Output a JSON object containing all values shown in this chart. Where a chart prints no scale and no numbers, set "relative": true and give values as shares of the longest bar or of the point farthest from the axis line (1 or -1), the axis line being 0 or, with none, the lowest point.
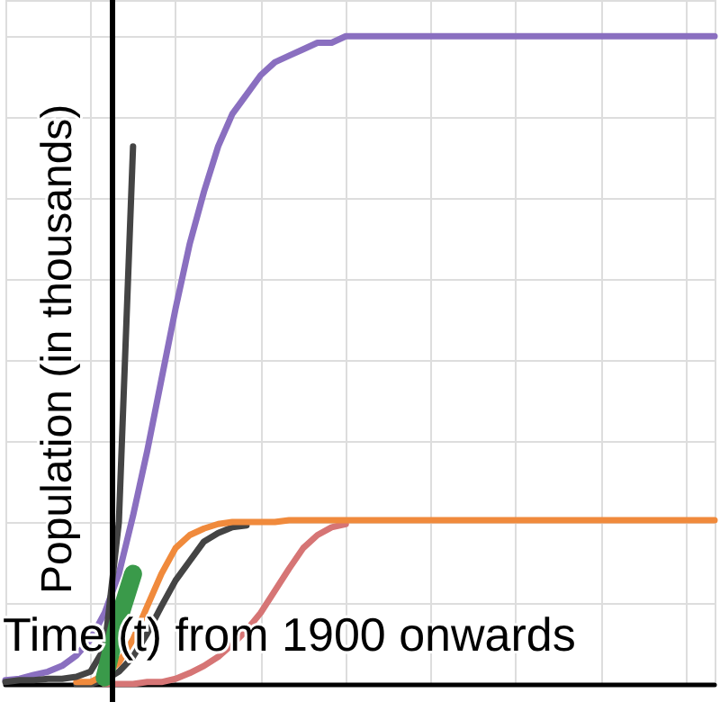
{
  "chart_data": {
    "type": "line",
    "relative": true,
    "xlabel": "Time (t) from 1900 onwards",
    "ylabel": "Population (in thousands)",
    "grid": true,
    "marker": "none",
    "line_style": "solid",
    "categories": [
      null,
      null,
      null,
      null,
      null,
      null,
      null,
      null,
      null,
      null,
      null,
      null,
      null,
      null,
      null,
      null,
      null,
      null,
      null,
      null,
      null,
      null,
      null,
      null,
      null,
      null,
      null,
      null,
      null,
      null,
      null,
      null,
      null,
      null,
      null,
      null,
      null,
      null,
      null,
      null,
      null,
      null,
      null,
      null,
      null,
      null,
      null,
      null,
      null,
      null,
      null
    ],
    "series": [
      {
        "color": "#8a6fc0",
        "values": [
          0.006,
          0.008,
          0.014,
          0.019,
          0.028,
          0.044,
          0.069,
          0.11,
          0.17,
          0.26,
          0.36,
          0.47,
          0.58,
          0.68,
          0.76,
          0.83,
          0.88,
          0.91,
          0.94,
          0.96,
          0.97,
          0.98,
          0.99,
          0.99,
          1,
          1,
          1,
          1,
          1,
          1,
          1,
          1,
          1,
          1,
          1,
          1,
          1,
          1,
          1,
          1,
          1,
          1,
          1,
          1,
          1,
          1,
          1,
          1,
          1,
          1,
          1
        ]
      },
      {
        "color": "#d67575",
        "values": [
          null,
          null,
          null,
          null,
          null,
          null,
          null,
          0,
          0,
          0,
          0.003,
          0.003,
          0.008,
          0.017,
          0.028,
          0.042,
          0.061,
          0.083,
          0.11,
          0.144,
          0.178,
          0.21,
          0.23,
          0.242,
          0.247,
          null,
          null,
          null,
          null,
          null,
          null,
          null,
          null,
          null,
          null,
          null,
          null,
          null,
          null,
          null,
          null,
          null,
          null,
          null,
          null,
          null,
          null,
          null,
          null,
          null,
          null
        ]
      },
      {
        "color": "#444444",
        "values": [
          null,
          null,
          null,
          null,
          null,
          0,
          0,
          0.006,
          0.019,
          0.042,
          0.078,
          0.12,
          0.16,
          0.19,
          0.22,
          0.233,
          0.242,
          0.245,
          null,
          null,
          null,
          null,
          null,
          null,
          null,
          null,
          null,
          null,
          null,
          null,
          null,
          null,
          null,
          null,
          null,
          null,
          null,
          null,
          null,
          null,
          null,
          null,
          null,
          null,
          null,
          null,
          null,
          null,
          null,
          null,
          null
        ]
      },
      {
        "color": "#f08a3c",
        "values": [
          null,
          null,
          null,
          null,
          null,
          0.003,
          0.003,
          0.014,
          0.033,
          0.069,
          0.12,
          0.17,
          0.21,
          0.23,
          0.24,
          0.247,
          0.25,
          0.25,
          0.25,
          0.25,
          0.253,
          0.253,
          0.253,
          0.253,
          0.253,
          0.253,
          0.253,
          0.253,
          0.253,
          0.253,
          0.253,
          0.253,
          0.253,
          0.253,
          0.253,
          0.253,
          0.253,
          0.253,
          0.253,
          0.253,
          0.253,
          0.253,
          0.253,
          0.253,
          0.253,
          0.253,
          0.253,
          0.253,
          0.253,
          0.253,
          0.253
        ]
      },
      {
        "color": "#444444",
        "values": [
          0.003,
          0.006,
          0.006,
          0.008,
          0.008,
          0.011,
          0.019,
          0.056,
          0.25,
          0.83,
          null,
          null,
          null,
          null,
          null,
          null,
          null,
          null,
          null,
          null,
          null,
          null,
          null,
          null,
          null,
          null,
          null,
          null,
          null,
          null,
          null,
          null,
          null,
          null,
          null,
          null,
          null,
          null,
          null,
          null,
          null,
          null,
          null,
          null,
          null,
          null,
          null,
          null,
          null,
          null,
          null
        ]
      },
      {
        "color": "#3a9a4a",
        "values": [
          null,
          null,
          null,
          null,
          null,
          null,
          null,
          0.01,
          0.1,
          0.17,
          null,
          null,
          null,
          null,
          null,
          null,
          null,
          null,
          null,
          null,
          null,
          null,
          null,
          null,
          null,
          null,
          null,
          null,
          null,
          null,
          null,
          null,
          null,
          null,
          null,
          null,
          null,
          null,
          null,
          null,
          null,
          null,
          null,
          null,
          null,
          null,
          null,
          null,
          null,
          null,
          null
        ]
      }
    ]
  }
}
